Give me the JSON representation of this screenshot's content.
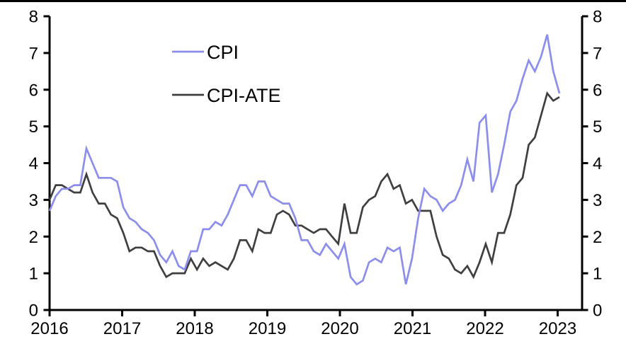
{
  "page": {
    "background": "#ffffff",
    "top_border_color": "#000000",
    "axis_color": "#000000"
  },
  "chart_data": {
    "type": "line",
    "title": "",
    "frequency": "monthly",
    "x_start": "2016-01",
    "x_end": "2022-12",
    "x_tick_labels": [
      "2016",
      "2017",
      "2018",
      "2019",
      "2020",
      "2021",
      "2022",
      "2023"
    ],
    "y_ticks_left": [
      "0",
      "1",
      "2",
      "3",
      "4",
      "5",
      "6",
      "7",
      "8"
    ],
    "y_ticks_right": [
      "0",
      "1",
      "2",
      "3",
      "4",
      "5",
      "6",
      "7",
      "8"
    ],
    "ylim": [
      0,
      8
    ],
    "grid": false,
    "legend_position": "upper-left-inside",
    "series": [
      {
        "name": "CPI",
        "color": "#8b8eec",
        "values": [
          2.7,
          3.1,
          3.3,
          3.3,
          3.4,
          3.4,
          4.4,
          4.0,
          3.6,
          3.6,
          3.6,
          3.5,
          2.8,
          2.5,
          2.4,
          2.2,
          2.1,
          1.9,
          1.5,
          1.3,
          1.6,
          1.2,
          1.1,
          1.6,
          1.6,
          2.2,
          2.2,
          2.4,
          2.3,
          2.6,
          3.0,
          3.4,
          3.4,
          3.1,
          3.5,
          3.5,
          3.1,
          3.0,
          2.9,
          2.9,
          2.5,
          1.9,
          1.9,
          1.6,
          1.5,
          1.8,
          1.6,
          1.4,
          1.8,
          0.9,
          0.7,
          0.8,
          1.3,
          1.4,
          1.3,
          1.7,
          1.6,
          1.7,
          0.7,
          1.4,
          2.5,
          3.3,
          3.1,
          3.0,
          2.7,
          2.9,
          3.0,
          3.4,
          4.1,
          3.5,
          5.1,
          5.3,
          3.2,
          3.7,
          4.5,
          5.4,
          5.7,
          6.3,
          6.8,
          6.5,
          6.9,
          7.5,
          6.5,
          5.9
        ]
      },
      {
        "name": "CPI-ATE",
        "color": "#3f3f41",
        "values": [
          3.0,
          3.4,
          3.4,
          3.3,
          3.2,
          3.2,
          3.7,
          3.2,
          2.9,
          2.9,
          2.6,
          2.5,
          2.1,
          1.6,
          1.7,
          1.7,
          1.6,
          1.6,
          1.2,
          0.9,
          1.0,
          1.0,
          1.0,
          1.4,
          1.1,
          1.4,
          1.2,
          1.3,
          1.2,
          1.1,
          1.4,
          1.9,
          1.9,
          1.6,
          2.2,
          2.1,
          2.1,
          2.6,
          2.7,
          2.6,
          2.3,
          2.3,
          2.2,
          2.1,
          2.2,
          2.2,
          2.0,
          1.8,
          2.9,
          2.1,
          2.1,
          2.8,
          3.0,
          3.1,
          3.5,
          3.7,
          3.3,
          3.4,
          2.9,
          3.0,
          2.7,
          2.7,
          2.7,
          2.0,
          1.5,
          1.4,
          1.1,
          1.0,
          1.2,
          0.9,
          1.3,
          1.8,
          1.3,
          2.1,
          2.1,
          2.6,
          3.4,
          3.6,
          4.5,
          4.7,
          5.3,
          5.9,
          5.7,
          5.8
        ]
      }
    ]
  }
}
